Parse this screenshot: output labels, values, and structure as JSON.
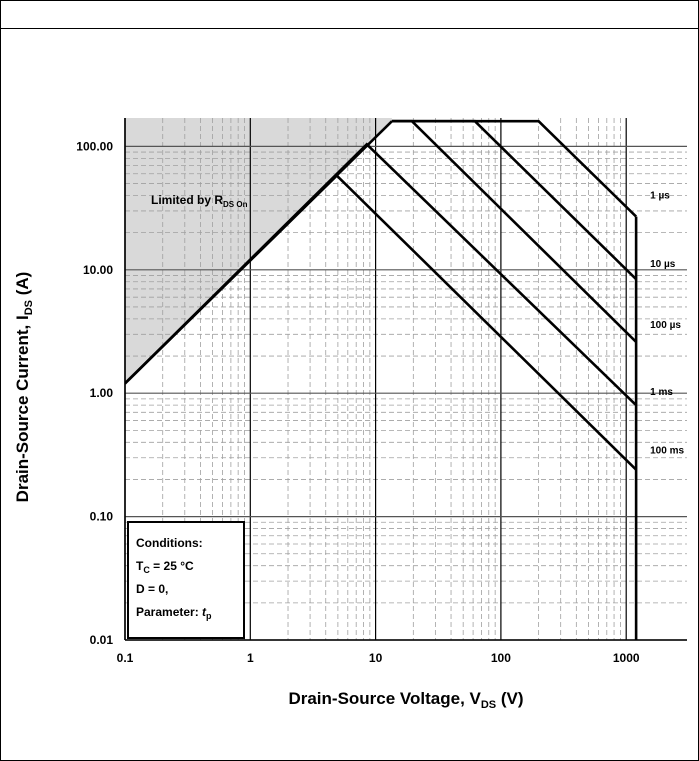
{
  "chart_data": {
    "type": "line",
    "x_scale": "log",
    "y_scale": "log",
    "xlim": [
      0.1,
      1500
    ],
    "ylim": [
      0.01,
      170
    ],
    "grid": true,
    "x_ticks": [
      {
        "value": 0.1,
        "label": "0.1"
      },
      {
        "value": 1,
        "label": "1"
      },
      {
        "value": 10,
        "label": "10"
      },
      {
        "value": 100,
        "label": "100"
      },
      {
        "value": 1000,
        "label": "1000"
      }
    ],
    "y_ticks": [
      {
        "value": 100,
        "label": "100.00"
      },
      {
        "value": 10,
        "label": "10.00"
      },
      {
        "value": 1,
        "label": "1.00"
      },
      {
        "value": 0.1,
        "label": "0.10"
      },
      {
        "value": 0.01,
        "label": "0.01"
      }
    ],
    "xlabel": {
      "main": "Drain-Source Voltage, V",
      "sub": "DS",
      "tail": " (V)"
    },
    "ylabel": {
      "main": "Drain-Source Current, I",
      "sub": "DS",
      "tail": " (A)"
    },
    "rds_region": {
      "label_main": "Limited by R",
      "label_sub": "DS On",
      "boundary": [
        [
          0.1,
          1.2
        ],
        [
          13.5,
          160
        ]
      ]
    },
    "series": [
      {
        "name": "1 µs",
        "points": [
          [
            13.5,
            160
          ],
          [
            200,
            160
          ],
          [
            1200,
            27
          ]
        ]
      },
      {
        "name": "10 µs",
        "points": [
          [
            13.5,
            160
          ],
          [
            62,
            160
          ],
          [
            1200,
            8.4
          ]
        ]
      },
      {
        "name": "100 µs",
        "points": [
          [
            13.5,
            160
          ],
          [
            19.5,
            160
          ],
          [
            1200,
            2.6
          ]
        ]
      },
      {
        "name": "1 ms",
        "points": [
          [
            0.1,
            1.2
          ],
          [
            8.5,
            104
          ],
          [
            1200,
            0.8
          ]
        ]
      },
      {
        "name": "100 ms",
        "points": [
          [
            0.1,
            1.2
          ],
          [
            4.9,
            58
          ],
          [
            1200,
            0.24
          ]
        ]
      }
    ],
    "vmax_line": {
      "x": 1200,
      "y_range": [
        0.01,
        27
      ]
    },
    "conditions": {
      "title": "Conditions:",
      "line1_main": "T",
      "line1_sub": "C",
      "line1_tail": " = 25 °C",
      "line2": "D = 0,",
      "line3_main": "Parameter: ",
      "line3_italic": "t",
      "line3_sub": "p"
    }
  }
}
